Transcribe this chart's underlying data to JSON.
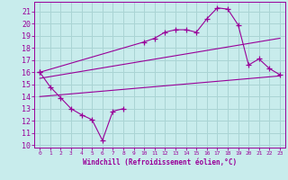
{
  "xlabel": "Windchill (Refroidissement éolien,°C)",
  "background_color": "#c8ecec",
  "grid_color": "#aad4d4",
  "line_color": "#990099",
  "xlim": [
    -0.5,
    23.5
  ],
  "ylim": [
    9.8,
    21.8
  ],
  "yticks": [
    10,
    11,
    12,
    13,
    14,
    15,
    16,
    17,
    18,
    19,
    20,
    21
  ],
  "xticks": [
    0,
    1,
    2,
    3,
    4,
    5,
    6,
    7,
    8,
    9,
    10,
    11,
    12,
    13,
    14,
    15,
    16,
    17,
    18,
    19,
    20,
    21,
    22,
    23
  ],
  "series": [
    {
      "x": [
        0,
        1,
        2,
        3,
        4,
        5,
        6,
        7,
        8
      ],
      "y": [
        16.0,
        14.8,
        13.9,
        13.0,
        12.5,
        12.1,
        10.4,
        12.8,
        13.0
      ],
      "marker": "+"
    },
    {
      "x": [
        0,
        10,
        11,
        12,
        13,
        14,
        15,
        16,
        17,
        18,
        19,
        20,
        21,
        22,
        23
      ],
      "y": [
        16.0,
        18.5,
        18.8,
        19.3,
        19.5,
        19.5,
        19.3,
        20.4,
        21.3,
        21.2,
        19.9,
        16.6,
        17.1,
        16.3,
        15.8
      ],
      "marker": "+"
    },
    {
      "x": [
        0,
        23
      ],
      "y": [
        14.0,
        15.7
      ],
      "marker": null
    },
    {
      "x": [
        0,
        23
      ],
      "y": [
        15.5,
        18.8
      ],
      "marker": null
    }
  ]
}
